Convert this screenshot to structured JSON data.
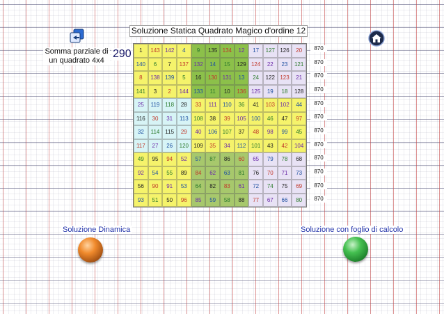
{
  "title": "Soluzione Statica Quadrato Magico d'ordine 12",
  "partial": {
    "label": "Somma parziale di un quadrato 4x4",
    "value": "290"
  },
  "buttons": {
    "dynamic": "Soluzione Dinamica",
    "spreadsheet": "Soluzione con foglio di calcolo"
  },
  "row_sums": [
    "870",
    "870",
    "870",
    "870",
    "870",
    "870",
    "870",
    "870",
    "870",
    "870",
    "870",
    "870"
  ],
  "colors": {
    "yellow": "#f5f36b",
    "green_light": "#8cc04a",
    "green_dark": "#6ca535",
    "lavender": "#e8e2f5",
    "cyan": "#d7f4f6",
    "beige": "#ece7c2",
    "olive": "#a7c86c"
  },
  "grid": [
    [
      "1",
      "143",
      "142",
      "4",
      "9",
      "135",
      "134",
      "12",
      "17",
      "127",
      "126",
      "20"
    ],
    [
      "140",
      "6",
      "7",
      "137",
      "132",
      "14",
      "15",
      "129",
      "124",
      "22",
      "23",
      "121"
    ],
    [
      "8",
      "138",
      "139",
      "5",
      "16",
      "130",
      "131",
      "13",
      "24",
      "122",
      "123",
      "21"
    ],
    [
      "141",
      "3",
      "2",
      "144",
      "133",
      "11",
      "10",
      "136",
      "125",
      "19",
      "18",
      "128"
    ],
    [
      "25",
      "119",
      "118",
      "28",
      "33",
      "111",
      "110",
      "36",
      "41",
      "103",
      "102",
      "44"
    ],
    [
      "116",
      "30",
      "31",
      "113",
      "108",
      "38",
      "39",
      "105",
      "100",
      "46",
      "47",
      "97"
    ],
    [
      "32",
      "114",
      "115",
      "29",
      "40",
      "106",
      "107",
      "37",
      "48",
      "98",
      "99",
      "45"
    ],
    [
      "117",
      "27",
      "26",
      "120",
      "109",
      "35",
      "34",
      "112",
      "101",
      "43",
      "42",
      "104"
    ],
    [
      "49",
      "95",
      "94",
      "52",
      "57",
      "87",
      "86",
      "60",
      "65",
      "79",
      "78",
      "68"
    ],
    [
      "92",
      "54",
      "55",
      "89",
      "84",
      "62",
      "63",
      "81",
      "76",
      "70",
      "71",
      "73"
    ],
    [
      "56",
      "90",
      "91",
      "53",
      "64",
      "82",
      "83",
      "61",
      "72",
      "74",
      "75",
      "69"
    ],
    [
      "93",
      "51",
      "50",
      "96",
      "85",
      "59",
      "58",
      "88",
      "77",
      "67",
      "66",
      "80"
    ]
  ]
}
